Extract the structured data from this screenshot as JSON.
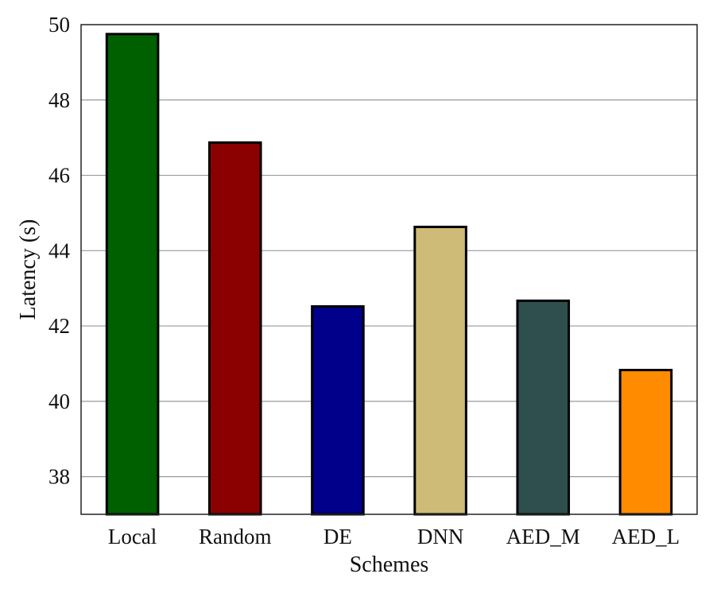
{
  "chart_data": {
    "type": "bar",
    "categories": [
      "Local",
      "Random",
      "DE",
      "DNN",
      "AED_M",
      "AED_L"
    ],
    "values": [
      49.75,
      46.87,
      42.52,
      44.63,
      42.67,
      40.83
    ],
    "colors": [
      "#006000",
      "#8b0000",
      "#00008b",
      "#cdbb77",
      "#2f4f4f",
      "#ff8c00"
    ],
    "bar_edge_color": "#000000",
    "title": "",
    "xlabel": "Schemes",
    "ylabel": "Latency (s)",
    "ylim": [
      37,
      50
    ],
    "yticks": [
      38,
      40,
      42,
      44,
      46,
      48,
      50
    ],
    "grid": "horizontal",
    "grid_color": "#999999",
    "legend": "none"
  }
}
